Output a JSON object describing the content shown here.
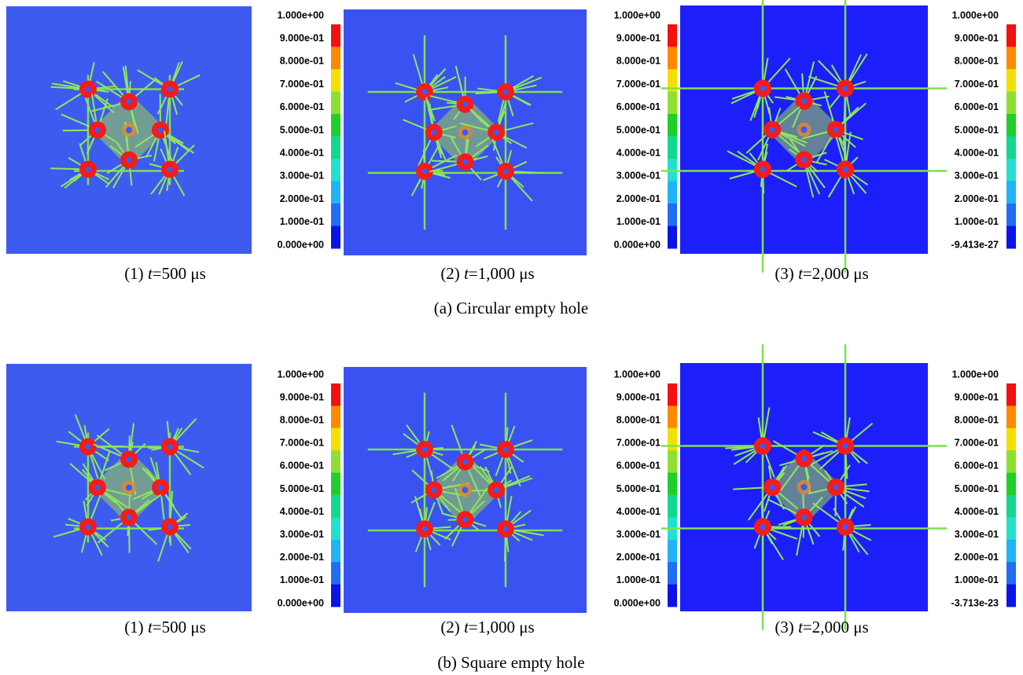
{
  "rows": [
    {
      "subtitle": "(a) Circular empty hole",
      "panels": [
        {
          "caption": {
            "label": "(1) ",
            "variable": "t",
            "rest": "=500 μs"
          },
          "colorbar": [
            "1.000e+00",
            "9.000e-01",
            "8.000e-01",
            "7.000e-01",
            "6.000e-01",
            "5.000e-01",
            "4.000e-01",
            "3.000e-01",
            "2.000e-01",
            "1.000e-01",
            "0.000e+00"
          ]
        },
        {
          "caption": {
            "label": "(2) ",
            "variable": "t",
            "rest": "=1,000 μs"
          },
          "colorbar": [
            "1.000e+00",
            "9.000e-01",
            "8.000e-01",
            "7.000e-01",
            "6.000e-01",
            "5.000e-01",
            "4.000e-01",
            "3.000e-01",
            "2.000e-01",
            "1.000e-01",
            "0.000e+00"
          ]
        },
        {
          "caption": {
            "label": "(3) ",
            "variable": "t",
            "rest": "=2,000 μs"
          },
          "colorbar": [
            "1.000e+00",
            "9.000e-01",
            "8.000e-01",
            "7.000e-01",
            "6.000e-01",
            "5.000e-01",
            "4.000e-01",
            "3.000e-01",
            "2.000e-01",
            "1.000e-01",
            "-9.413e-27"
          ]
        }
      ]
    },
    {
      "subtitle": "(b) Square empty hole",
      "panels": [
        {
          "caption": {
            "label": "(1) ",
            "variable": "t",
            "rest": "=500 μs"
          },
          "colorbar": [
            "1.000e+00",
            "9.000e-01",
            "8.000e-01",
            "7.000e-01",
            "6.000e-01",
            "5.000e-01",
            "4.000e-01",
            "3.000e-01",
            "2.000e-01",
            "1.000e-01",
            "0.000e+00"
          ]
        },
        {
          "caption": {
            "label": "(2) ",
            "variable": "t",
            "rest": "=1,000 μs"
          },
          "colorbar": [
            "1.000e+00",
            "9.000e-01",
            "8.000e-01",
            "7.000e-01",
            "6.000e-01",
            "5.000e-01",
            "4.000e-01",
            "3.000e-01",
            "2.000e-01",
            "1.000e-01",
            "0.000e+00"
          ]
        },
        {
          "caption": {
            "label": "(3) ",
            "variable": "t",
            "rest": "=2,000 μs"
          },
          "colorbar": [
            "1.000e+00",
            "9.000e-01",
            "8.000e-01",
            "7.000e-01",
            "6.000e-01",
            "5.000e-01",
            "4.000e-01",
            "3.000e-01",
            "2.000e-01",
            "1.000e-01",
            "-3.713e-23"
          ]
        }
      ]
    }
  ]
}
